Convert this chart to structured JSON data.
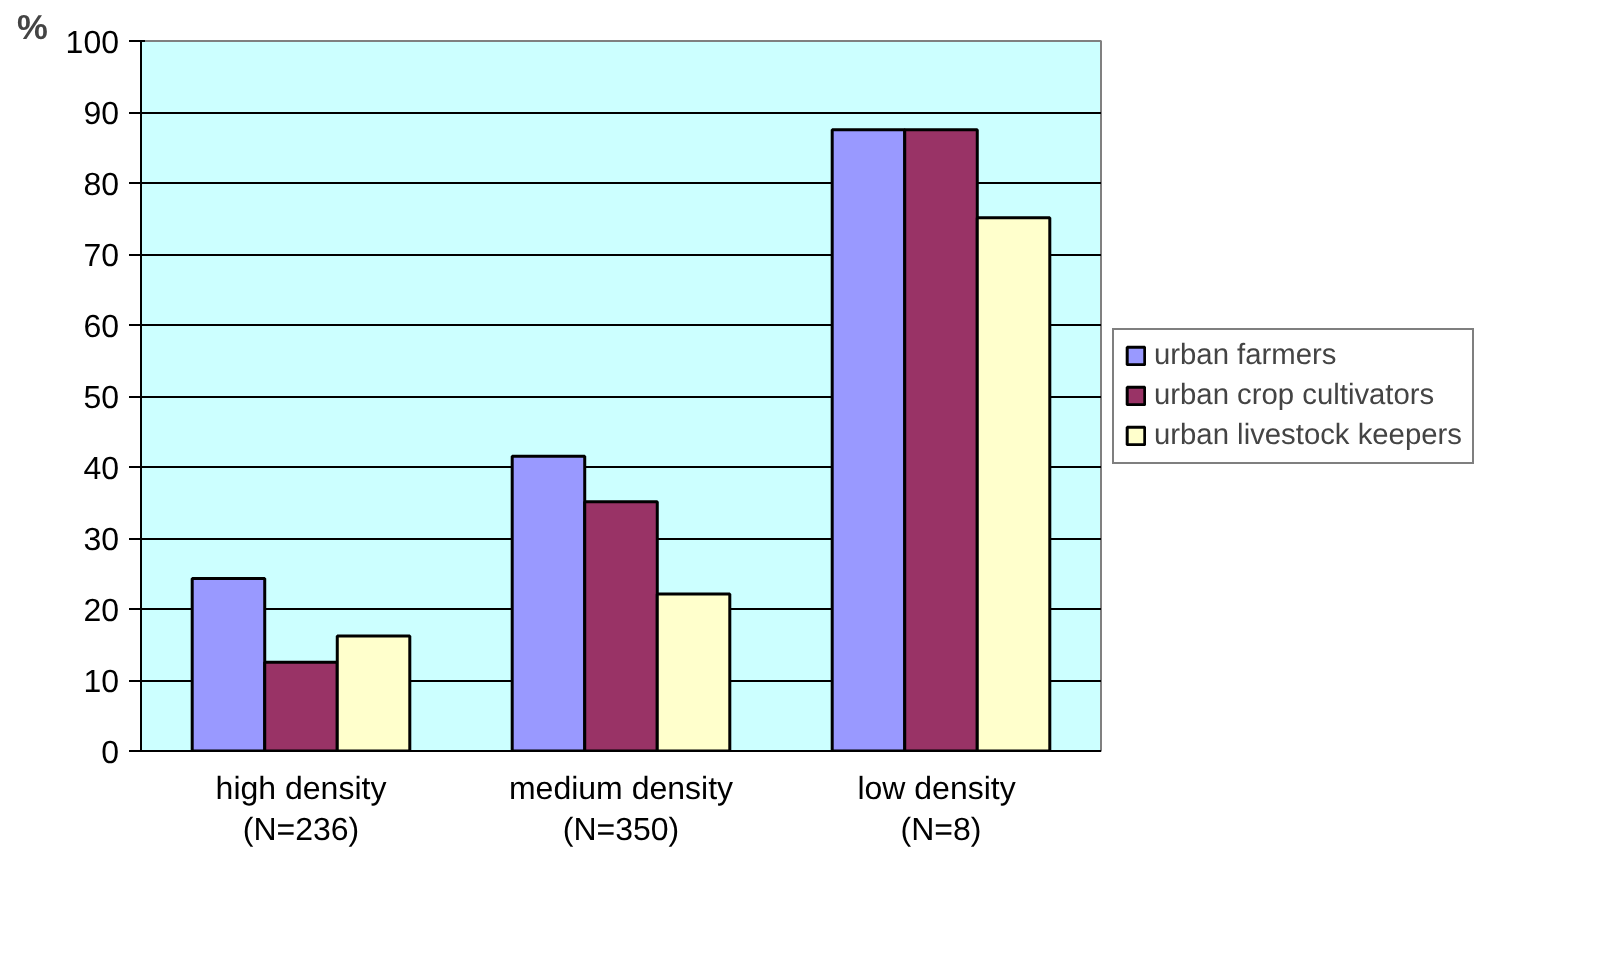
{
  "chart_data": {
    "type": "bar",
    "ylabel": "%",
    "categories": [
      "high density\n(N=236)",
      "medium density\n(N=350)",
      "low  density\n(N=8)"
    ],
    "series": [
      {
        "name": "urban farmers",
        "color": "#9999ff",
        "values": [
          24.3,
          41.5,
          87.5
        ]
      },
      {
        "name": "urban crop cultivators",
        "color": "#993366",
        "values": [
          12.5,
          35.1,
          87.5
        ]
      },
      {
        "name": "urban livestock keepers",
        "color": "#ffffcc",
        "values": [
          16.2,
          22.1,
          75.1
        ]
      }
    ],
    "ylim": [
      0,
      100
    ],
    "yticks": [
      0,
      10,
      20,
      30,
      40,
      50,
      60,
      70,
      80,
      90,
      100
    ],
    "grid": "y",
    "legend": "right"
  }
}
